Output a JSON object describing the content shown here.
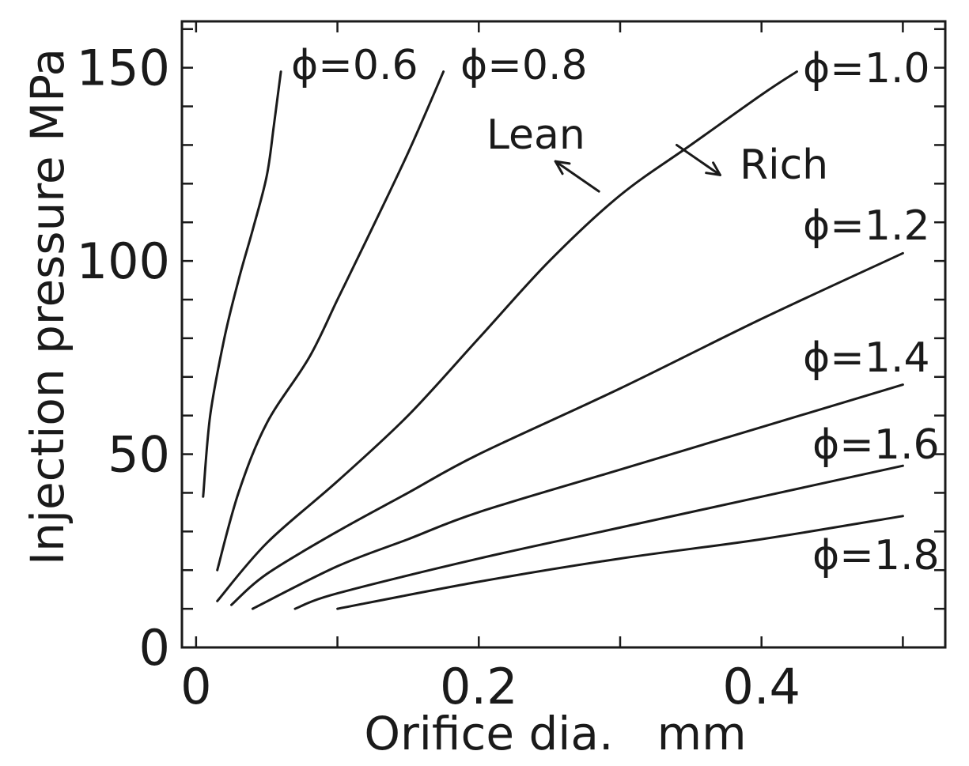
{
  "chart_data": {
    "type": "line",
    "title": "",
    "xlabel": "Orifice dia.   mm",
    "ylabel": "Injection pressure MPa",
    "xlim": [
      -0.01,
      0.53
    ],
    "ylim": [
      0,
      162
    ],
    "x_ticks": [
      0,
      0.1,
      0.2,
      0.3,
      0.4,
      0.5
    ],
    "x_tick_labels": [
      "0",
      "",
      "0.2",
      "",
      "0.4",
      ""
    ],
    "y_ticks": [
      0,
      10,
      20,
      30,
      40,
      50,
      60,
      70,
      80,
      90,
      100,
      110,
      120,
      130,
      140,
      150,
      160
    ],
    "y_tick_labels": [
      "0",
      "",
      "",
      "",
      "",
      "50",
      "",
      "",
      "",
      "",
      "100",
      "",
      "",
      "",
      "",
      "150",
      ""
    ],
    "grid": false,
    "legend": "none",
    "series": [
      {
        "name": "ϕ=0.6",
        "x": [
          0.005,
          0.01,
          0.02,
          0.03,
          0.04,
          0.05,
          0.055,
          0.06
        ],
        "y": [
          39,
          60,
          80,
          95,
          108,
          122,
          135,
          149
        ]
      },
      {
        "name": "ϕ=0.8",
        "x": [
          0.015,
          0.03,
          0.05,
          0.08,
          0.1,
          0.12,
          0.15,
          0.175
        ],
        "y": [
          20,
          40,
          58,
          75,
          90,
          105,
          128,
          149
        ]
      },
      {
        "name": "ϕ=1.0",
        "x": [
          0.015,
          0.05,
          0.1,
          0.15,
          0.2,
          0.25,
          0.3,
          0.35,
          0.4,
          0.425
        ],
        "y": [
          12,
          27,
          43,
          60,
          80,
          100,
          117,
          130,
          143,
          149
        ]
      },
      {
        "name": "ϕ=1.2",
        "x": [
          0.025,
          0.05,
          0.1,
          0.15,
          0.2,
          0.3,
          0.4,
          0.5
        ],
        "y": [
          11,
          19,
          30,
          40,
          50,
          67,
          85,
          102
        ]
      },
      {
        "name": "ϕ=1.4",
        "x": [
          0.04,
          0.1,
          0.15,
          0.2,
          0.3,
          0.4,
          0.5
        ],
        "y": [
          10,
          21,
          28,
          35,
          46,
          57,
          68
        ]
      },
      {
        "name": "ϕ=1.6",
        "x": [
          0.07,
          0.1,
          0.2,
          0.3,
          0.4,
          0.5
        ],
        "y": [
          10,
          14,
          23,
          31,
          39,
          47
        ]
      },
      {
        "name": "ϕ=1.8",
        "x": [
          0.1,
          0.2,
          0.3,
          0.4,
          0.5
        ],
        "y": [
          10,
          17,
          23,
          28,
          34
        ]
      }
    ],
    "annotations": [
      {
        "text": "Lean",
        "x": 0.285,
        "y": 118,
        "direction": "upper-left"
      },
      {
        "text": "Rich",
        "x": 0.34,
        "y": 130,
        "direction": "lower-right"
      }
    ]
  }
}
